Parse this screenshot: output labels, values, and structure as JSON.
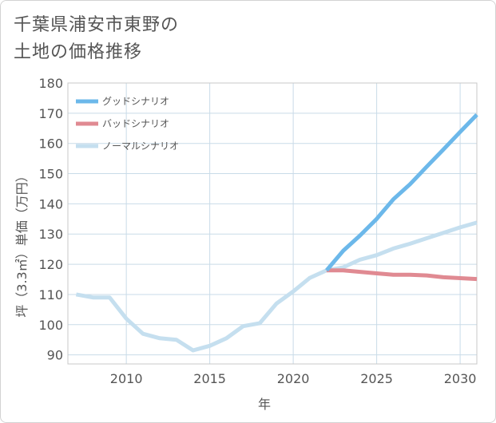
{
  "title": {
    "line1": "千葉県浦安市東野の",
    "line2": "土地の価格推移"
  },
  "chart_data": {
    "type": "line",
    "xlabel": "年",
    "ylabel": "坪（3.3㎡）単価（万円）",
    "xlim": [
      2006.5,
      2031
    ],
    "ylim": [
      87,
      180
    ],
    "xticks": [
      2010,
      2015,
      2020,
      2025,
      2030
    ],
    "yticks": [
      90,
      100,
      110,
      120,
      130,
      140,
      150,
      160,
      170,
      180
    ],
    "grid": true,
    "legend_position": "top-left",
    "series": [
      {
        "name": "ノーマルシナリオ",
        "color": "#c5dfef",
        "x": [
          2007,
          2008,
          2009,
          2010,
          2011,
          2012,
          2013,
          2014,
          2015,
          2016,
          2017,
          2018,
          2019,
          2020,
          2021,
          2022,
          2023,
          2024,
          2025,
          2026,
          2027,
          2028,
          2029,
          2030,
          2031
        ],
        "y": [
          110,
          109,
          109,
          102,
          97,
          95.5,
          95,
          91.5,
          93,
          95.5,
          99.5,
          100.5,
          107,
          111,
          115.5,
          118,
          119,
          121.5,
          123,
          125.2,
          126.8,
          128.6,
          130.4,
          132.2,
          133.8
        ]
      },
      {
        "name": "バッドシナリオ",
        "color": "#e08a92",
        "x": [
          2022,
          2023,
          2024,
          2025,
          2026,
          2027,
          2028,
          2029,
          2030,
          2031
        ],
        "y": [
          118,
          118,
          117.5,
          117,
          116.5,
          116.5,
          116.3,
          115.7,
          115.4,
          115.1
        ]
      },
      {
        "name": "グッドシナリオ",
        "color": "#6cb8ea",
        "x": [
          2022,
          2023,
          2024,
          2025,
          2026,
          2027,
          2028,
          2029,
          2030,
          2031
        ],
        "y": [
          118,
          124.5,
          129.5,
          135,
          141.5,
          146.5,
          152.3,
          158,
          163.8,
          169.5
        ]
      }
    ],
    "legend_order": [
      "グッドシナリオ",
      "バッドシナリオ",
      "ノーマルシナリオ"
    ]
  }
}
